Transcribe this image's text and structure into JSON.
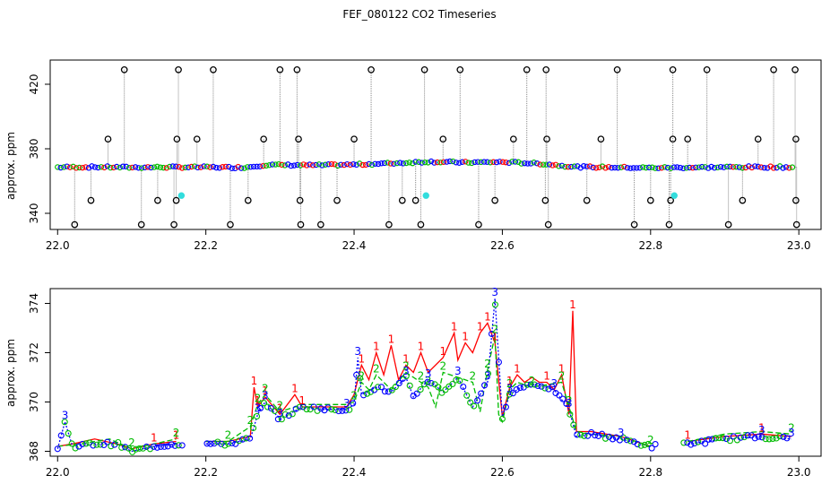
{
  "title": "FEF_080122  CO2 Timeseries",
  "chart_data": [
    {
      "type": "scatter",
      "ylabel": "approx. ppm",
      "xlim": [
        21.99,
        23.03
      ],
      "ylim": [
        330,
        435
      ],
      "xticks": [
        "22.0",
        "22.2",
        "22.4",
        "22.6",
        "22.8",
        "23.0"
      ],
      "yticks": [
        "340",
        "380",
        "420"
      ],
      "baseline": [
        [
          22.0,
          368.6
        ],
        [
          22.05,
          368.7
        ],
        [
          22.1,
          368.5
        ],
        [
          22.15,
          368.6
        ],
        [
          22.2,
          368.6
        ],
        [
          22.25,
          368.4
        ],
        [
          22.28,
          370.0
        ],
        [
          22.35,
          369.8
        ],
        [
          22.4,
          370.2
        ],
        [
          22.45,
          371.0
        ],
        [
          22.5,
          372.0
        ],
        [
          22.55,
          371.5
        ],
        [
          22.6,
          371.8
        ],
        [
          22.65,
          370.8
        ],
        [
          22.7,
          368.8
        ],
        [
          22.75,
          368.5
        ],
        [
          22.8,
          368.2
        ],
        [
          22.85,
          368.4
        ],
        [
          22.9,
          368.6
        ],
        [
          22.95,
          368.7
        ],
        [
          22.99,
          368.6
        ]
      ],
      "outliers_high": [
        22.09,
        22.163,
        22.21,
        22.3,
        22.323,
        22.423,
        22.495,
        22.543,
        22.633,
        22.659,
        22.755,
        22.83,
        22.876,
        22.966,
        22.995
      ],
      "outliers_mid": [
        22.068,
        22.161,
        22.188,
        22.278,
        22.325,
        22.4,
        22.52,
        22.615,
        22.66,
        22.733,
        22.83,
        22.85,
        22.945,
        22.996
      ],
      "outliers_low": [
        22.045,
        22.135,
        22.16,
        22.257,
        22.327,
        22.377,
        22.465,
        22.483,
        22.59,
        22.658,
        22.714,
        22.8,
        22.827,
        22.924,
        22.996
      ],
      "outliers_bottom": [
        22.023,
        22.113,
        22.157,
        22.233,
        22.328,
        22.355,
        22.447,
        22.49,
        22.568,
        22.662,
        22.778,
        22.825,
        22.905,
        22.997
      ],
      "cyan_points": [
        [
          22.167,
          351
        ],
        [
          22.497,
          351
        ],
        [
          22.832,
          351
        ]
      ]
    },
    {
      "type": "line",
      "ylabel": "approx. ppm",
      "xlim": [
        21.99,
        23.03
      ],
      "ylim": [
        367.8,
        374.6
      ],
      "xticks": [
        "22.0",
        "22.2",
        "22.4",
        "22.6",
        "22.8",
        "23.0"
      ],
      "yticks": [
        "368",
        "370",
        "372",
        "374"
      ],
      "series": [
        {
          "name": "1",
          "color": "#ff0000",
          "values": [
            [
              22.0,
              368.2
            ],
            [
              22.02,
              368.3
            ],
            [
              22.05,
              368.5
            ],
            [
              22.08,
              368.3
            ],
            [
              22.1,
              368.1
            ],
            [
              22.13,
              368.3
            ],
            [
              22.16,
              368.4
            ],
            [
              22.2,
              368.4
            ],
            [
              22.23,
              368.4
            ],
            [
              22.26,
              368.6
            ],
            [
              22.265,
              370.6
            ],
            [
              22.27,
              369.8
            ],
            [
              22.28,
              370.2
            ],
            [
              22.3,
              369.5
            ],
            [
              22.32,
              370.3
            ],
            [
              22.33,
              369.8
            ],
            [
              22.36,
              369.8
            ],
            [
              22.39,
              369.8
            ],
            [
              22.4,
              370.3
            ],
            [
              22.41,
              371.5
            ],
            [
              22.42,
              370.9
            ],
            [
              22.43,
              372.0
            ],
            [
              22.44,
              371.1
            ],
            [
              22.45,
              372.3
            ],
            [
              22.46,
              370.9
            ],
            [
              22.47,
              371.5
            ],
            [
              22.48,
              371.2
            ],
            [
              22.49,
              372.0
            ],
            [
              22.5,
              371.2
            ],
            [
              22.52,
              371.8
            ],
            [
              22.535,
              372.8
            ],
            [
              22.54,
              371.7
            ],
            [
              22.55,
              372.4
            ],
            [
              22.56,
              372.0
            ],
            [
              22.57,
              372.8
            ],
            [
              22.58,
              373.2
            ],
            [
              22.59,
              372.4
            ],
            [
              22.6,
              369.4
            ],
            [
              22.61,
              370.6
            ],
            [
              22.62,
              371.1
            ],
            [
              22.63,
              370.8
            ],
            [
              22.64,
              371.0
            ],
            [
              22.65,
              370.8
            ],
            [
              22.66,
              370.8
            ],
            [
              22.67,
              370.5
            ],
            [
              22.68,
              371.1
            ],
            [
              22.69,
              369.5
            ],
            [
              22.695,
              373.7
            ],
            [
              22.7,
              368.8
            ],
            [
              22.72,
              368.8
            ],
            [
              22.76,
              368.6
            ],
            [
              22.8,
              368.2
            ],
            [
              22.85,
              368.4
            ],
            [
              22.9,
              368.6
            ],
            [
              22.95,
              368.7
            ],
            [
              22.99,
              368.6
            ]
          ]
        },
        {
          "name": "2",
          "color": "#00bb00",
          "values": [
            [
              22.0,
              368.2
            ],
            [
              22.03,
              368.3
            ],
            [
              22.07,
              368.5
            ],
            [
              22.1,
              368.1
            ],
            [
              22.13,
              368.3
            ],
            [
              22.16,
              368.5
            ],
            [
              22.2,
              368.4
            ],
            [
              22.23,
              368.4
            ],
            [
              22.26,
              369.0
            ],
            [
              22.27,
              369.9
            ],
            [
              22.28,
              370.3
            ],
            [
              22.3,
              369.6
            ],
            [
              22.33,
              369.9
            ],
            [
              22.36,
              369.9
            ],
            [
              22.39,
              369.9
            ],
            [
              22.4,
              370.0
            ],
            [
              22.41,
              370.8
            ],
            [
              22.42,
              370.5
            ],
            [
              22.43,
              371.1
            ],
            [
              22.45,
              370.5
            ],
            [
              22.47,
              371.2
            ],
            [
              22.49,
              370.8
            ],
            [
              22.5,
              370.6
            ],
            [
              22.51,
              369.8
            ],
            [
              22.52,
              371.2
            ],
            [
              22.54,
              371.0
            ],
            [
              22.56,
              370.8
            ],
            [
              22.57,
              369.6
            ],
            [
              22.58,
              371.3
            ],
            [
              22.59,
              372.7
            ],
            [
              22.595,
              369.5
            ],
            [
              22.6,
              369.2
            ],
            [
              22.61,
              370.5
            ],
            [
              22.62,
              370.8
            ],
            [
              22.64,
              370.6
            ],
            [
              22.66,
              370.7
            ],
            [
              22.68,
              370.8
            ],
            [
              22.69,
              369.8
            ],
            [
              22.7,
              368.8
            ],
            [
              22.72,
              368.7
            ],
            [
              22.76,
              368.6
            ],
            [
              22.8,
              368.2
            ],
            [
              22.85,
              368.4
            ],
            [
              22.9,
              368.7
            ],
            [
              22.95,
              368.8
            ],
            [
              22.99,
              368.7
            ]
          ]
        },
        {
          "name": "3",
          "color": "#0000ff",
          "values": [
            [
              22.0,
              368.1
            ],
            [
              22.01,
              369.2
            ],
            [
              22.02,
              368.2
            ],
            [
              22.05,
              368.3
            ],
            [
              22.08,
              368.3
            ],
            [
              22.1,
              368.0
            ],
            [
              22.13,
              368.2
            ],
            [
              22.16,
              368.3
            ],
            [
              22.2,
              368.3
            ],
            [
              22.23,
              368.3
            ],
            [
              22.26,
              368.5
            ],
            [
              22.27,
              369.5
            ],
            [
              22.28,
              370.0
            ],
            [
              22.3,
              369.3
            ],
            [
              22.33,
              369.8
            ],
            [
              22.36,
              369.7
            ],
            [
              22.39,
              369.7
            ],
            [
              22.4,
              369.9
            ],
            [
              22.405,
              371.8
            ],
            [
              22.41,
              370.3
            ],
            [
              22.43,
              370.6
            ],
            [
              22.45,
              370.4
            ],
            [
              22.47,
              371.0
            ],
            [
              22.48,
              370.2
            ],
            [
              22.5,
              370.9
            ],
            [
              22.52,
              370.4
            ],
            [
              22.54,
              371.0
            ],
            [
              22.56,
              369.8
            ],
            [
              22.58,
              370.8
            ],
            [
              22.59,
              374.2
            ],
            [
              22.6,
              369.4
            ],
            [
              22.61,
              370.3
            ],
            [
              22.63,
              370.7
            ],
            [
              22.65,
              370.7
            ],
            [
              22.67,
              370.5
            ],
            [
              22.69,
              369.7
            ],
            [
              22.7,
              368.6
            ],
            [
              22.72,
              368.7
            ],
            [
              22.76,
              368.5
            ],
            [
              22.8,
              368.2
            ],
            [
              22.85,
              368.3
            ],
            [
              22.9,
              368.5
            ],
            [
              22.95,
              368.6
            ],
            [
              22.99,
              368.5
            ]
          ]
        }
      ]
    }
  ]
}
